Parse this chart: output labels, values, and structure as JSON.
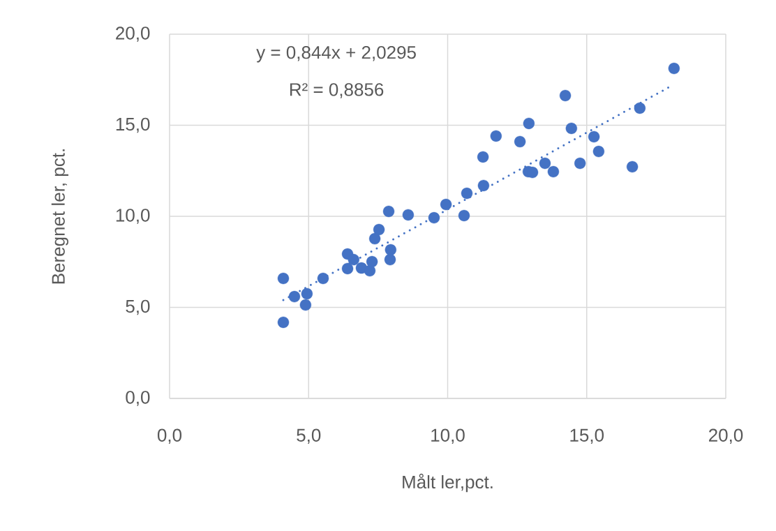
{
  "chart_data": {
    "type": "scatter",
    "xlabel": "Målt ler,pct.",
    "ylabel": "Beregnet ler, pct.",
    "annotations": [
      "y = 0,844x + 2,0295",
      "R² = 0,8856"
    ],
    "series": [
      {
        "color": "#4472c4",
        "marker": "circle",
        "x": [
          4.09,
          4.09,
          4.49,
          4.94,
          4.89,
          5.52,
          6.4,
          6.4,
          6.62,
          6.9,
          7.2,
          7.28,
          7.38,
          7.53,
          7.93,
          7.95,
          7.88,
          8.58,
          9.51,
          9.94,
          10.59,
          10.69,
          11.27,
          11.29,
          11.74,
          12.6,
          12.9,
          13.05,
          12.92,
          13.5,
          13.8,
          14.23,
          14.45,
          14.76,
          15.26,
          15.43,
          16.64,
          16.91,
          18.14
        ],
        "values": [
          6.59,
          4.18,
          5.59,
          5.75,
          5.13,
          6.59,
          7.93,
          7.13,
          7.62,
          7.16,
          7.01,
          7.51,
          8.77,
          9.27,
          7.62,
          8.16,
          10.27,
          10.08,
          9.92,
          10.65,
          10.04,
          11.26,
          13.26,
          11.69,
          14.41,
          14.1,
          12.45,
          12.41,
          15.1,
          12.91,
          12.45,
          16.63,
          14.83,
          12.91,
          14.37,
          13.56,
          12.72,
          15.94,
          18.12
        ]
      },
      {
        "type": "line",
        "color": "#4472c4",
        "marker": "none",
        "line_style": "dotted",
        "x": [
          4.09,
          18.04
        ],
        "values": [
          5.4,
          17.16
        ]
      }
    ],
    "xlim": [
      0,
      20
    ],
    "ylim": [
      0,
      20
    ],
    "xticks": [
      {
        "value": 0,
        "label": "0,0"
      },
      {
        "value": 5,
        "label": "5,0"
      },
      {
        "value": 10,
        "label": "10,0"
      },
      {
        "value": 15,
        "label": "15,0"
      },
      {
        "value": 20,
        "label": "20,0"
      }
    ],
    "yticks": [
      {
        "value": 0,
        "label": "0,0"
      },
      {
        "value": 5,
        "label": "5,0"
      },
      {
        "value": 10,
        "label": "10,0"
      },
      {
        "value": 15,
        "label": "15,0"
      },
      {
        "value": 20,
        "label": "20,0"
      }
    ],
    "grid": true
  }
}
